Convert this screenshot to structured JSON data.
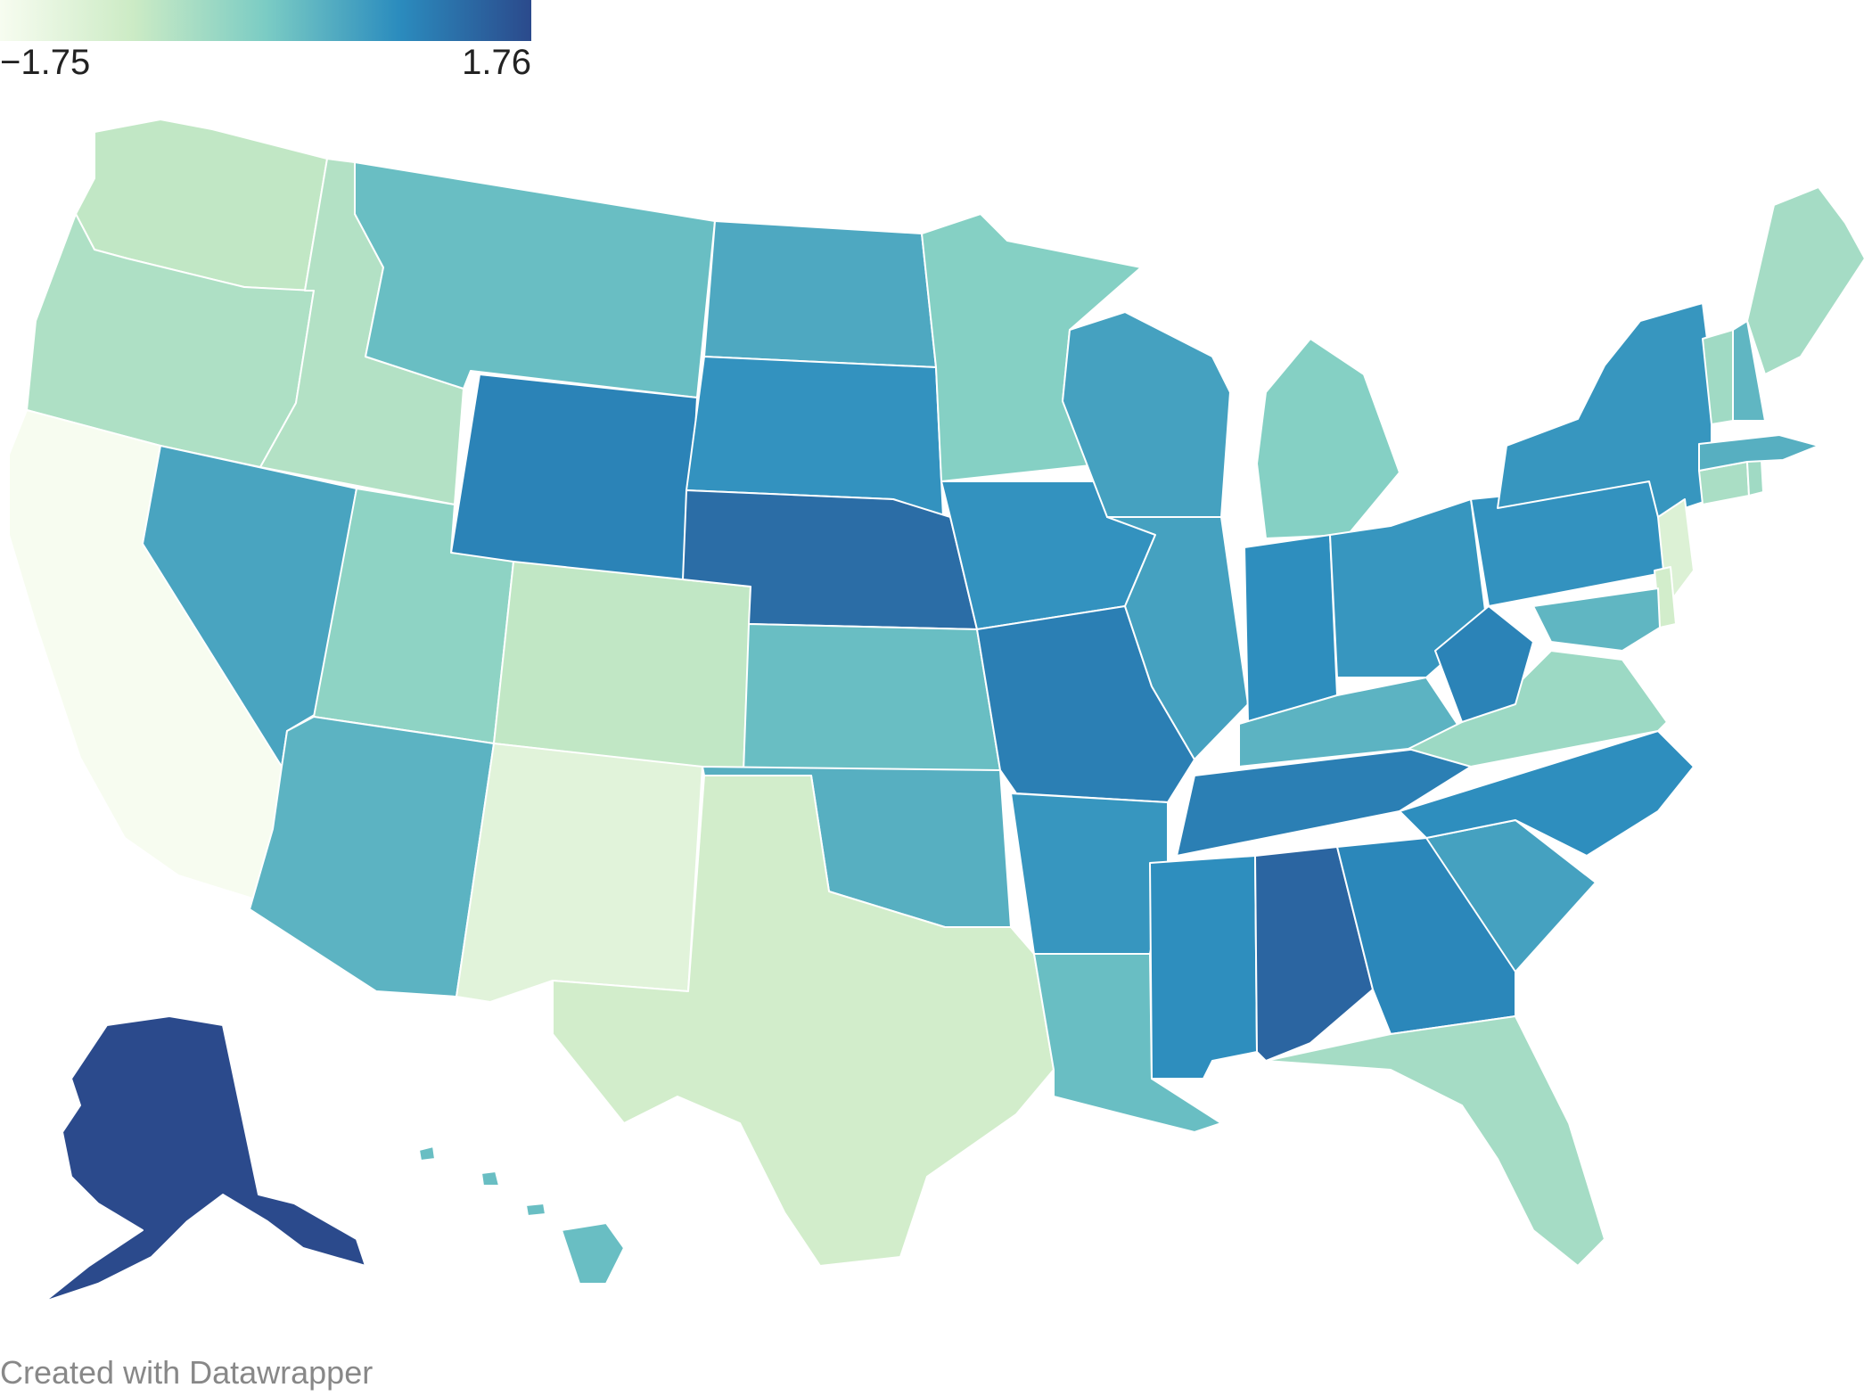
{
  "legend": {
    "min_label": "−1.75",
    "max_label": "1.76",
    "min_value": -1.75,
    "max_value": 1.76,
    "gradient_colors": [
      "#f7fcf0",
      "#ccebc5",
      "#7bccc4",
      "#2b8cbe",
      "#2b4a8c"
    ]
  },
  "credit": "Created with Datawrapper",
  "map_data": {
    "type": "choropleth",
    "region": "United States",
    "color_scale": [
      "#f7fcf0",
      "#ccebc5",
      "#7bccc4",
      "#2b8cbe",
      "#2b4a8c"
    ],
    "states": [
      {
        "id": "WA",
        "value": -0.75
      },
      {
        "id": "OR",
        "value": -0.55
      },
      {
        "id": "CA",
        "value": -1.75
      },
      {
        "id": "ID",
        "value": -0.6
      },
      {
        "id": "NV",
        "value": 0.55
      },
      {
        "id": "MT",
        "value": 0.2
      },
      {
        "id": "WY",
        "value": 1.0
      },
      {
        "id": "UT",
        "value": -0.2
      },
      {
        "id": "AZ",
        "value": 0.35
      },
      {
        "id": "CO",
        "value": -0.75
      },
      {
        "id": "NM",
        "value": -1.3
      },
      {
        "id": "ND",
        "value": 0.5
      },
      {
        "id": "SD",
        "value": 0.8
      },
      {
        "id": "NE",
        "value": 1.3
      },
      {
        "id": "KS",
        "value": 0.2
      },
      {
        "id": "OK",
        "value": 0.4
      },
      {
        "id": "TX",
        "value": -1.0
      },
      {
        "id": "MN",
        "value": -0.1
      },
      {
        "id": "IA",
        "value": 0.8
      },
      {
        "id": "MO",
        "value": 1.05
      },
      {
        "id": "AR",
        "value": 0.75
      },
      {
        "id": "LA",
        "value": 0.2
      },
      {
        "id": "WI",
        "value": 0.6
      },
      {
        "id": "IL",
        "value": 0.6
      },
      {
        "id": "MI",
        "value": -0.1
      },
      {
        "id": "IN",
        "value": 0.85
      },
      {
        "id": "OH",
        "value": 0.75
      },
      {
        "id": "KY",
        "value": 0.35
      },
      {
        "id": "TN",
        "value": 1.05
      },
      {
        "id": "MS",
        "value": 0.85
      },
      {
        "id": "AL",
        "value": 1.4
      },
      {
        "id": "GA",
        "value": 0.95
      },
      {
        "id": "FL",
        "value": -0.45
      },
      {
        "id": "SC",
        "value": 0.6
      },
      {
        "id": "NC",
        "value": 0.85
      },
      {
        "id": "VA",
        "value": -0.35
      },
      {
        "id": "WV",
        "value": 1.0
      },
      {
        "id": "PA",
        "value": 0.8
      },
      {
        "id": "NY",
        "value": 0.75
      },
      {
        "id": "NJ",
        "value": -1.2
      },
      {
        "id": "DE",
        "value": -1.0
      },
      {
        "id": "MD",
        "value": 0.3
      },
      {
        "id": "CT",
        "value": -0.5
      },
      {
        "id": "RI",
        "value": -0.4
      },
      {
        "id": "MA",
        "value": 0.4
      },
      {
        "id": "VT",
        "value": -0.4
      },
      {
        "id": "NH",
        "value": 0.3
      },
      {
        "id": "ME",
        "value": -0.45
      },
      {
        "id": "AK",
        "value": 1.76
      },
      {
        "id": "HI",
        "value": 0.2
      }
    ]
  }
}
